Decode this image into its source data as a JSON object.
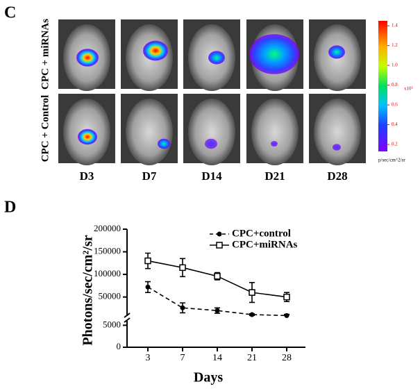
{
  "panel_c": {
    "label": "C",
    "row_labels": [
      "CPC + miRNAs",
      "CPC + Control"
    ],
    "columns": [
      "D3",
      "D7",
      "D14",
      "D21",
      "D28"
    ],
    "colorbar": {
      "range": [
        0.13,
        1.45
      ],
      "ticks": [
        1.4,
        1.2,
        {
          "value": 1,
          "label": "1.0"
        },
        0.8,
        0.6,
        0.4,
        0.2
      ],
      "multiplier": "x10⁵",
      "unit": "p/sec/cm^2/sr"
    }
  },
  "chart_data": {
    "type": "line",
    "panel_label": "D",
    "x_label": "Days",
    "y_label": "Photons/sec/cm²/sr",
    "categories": [
      "3",
      "7",
      "14",
      "21",
      "28"
    ],
    "series": [
      {
        "name": "CPC+control",
        "color": "#000000",
        "line_style": "dashed",
        "marker": "filled-circle",
        "values": [
          72000,
          26000,
          20000,
          11000,
          9000
        ],
        "errors": [
          12000,
          11000,
          6000,
          2000,
          1500
        ]
      },
      {
        "name": "CPC+miRNAs",
        "color": "#000000",
        "line_style": "solid",
        "marker": "open-square",
        "values": [
          130000,
          115000,
          96000,
          60000,
          50000
        ],
        "errors": [
          17000,
          20000,
          8000,
          22000,
          10000
        ]
      }
    ],
    "ylim": [
      0,
      200000
    ],
    "y_segments": [
      [
        0,
        6000
      ],
      [
        8000,
        200000
      ]
    ],
    "yticks": [
      0,
      5000,
      50000,
      100000,
      150000,
      200000
    ],
    "legend": "upper-right"
  }
}
